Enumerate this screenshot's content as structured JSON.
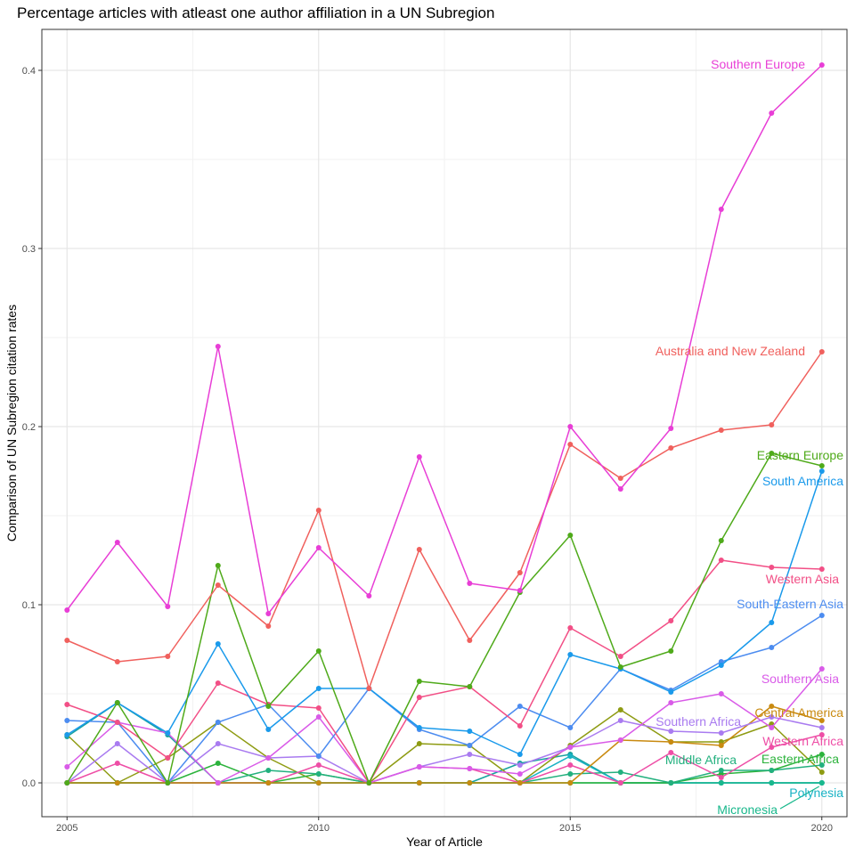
{
  "chart_data": {
    "type": "line",
    "title": "Percentage articles with atleast one author affiliation in a UN Subregion",
    "xlabel": "Year of Article",
    "ylabel": "Comparison of UN Subregion citation rates",
    "xlim": [
      2004.5,
      2020.5
    ],
    "ylim": [
      -0.019,
      0.423
    ],
    "xticks": [
      2005,
      2010,
      2015,
      2020
    ],
    "xtick_labels": [
      "2005",
      "2010",
      "2015",
      "2020"
    ],
    "yticks": [
      0.0,
      0.1,
      0.2,
      0.3,
      0.4
    ],
    "ytick_labels": [
      "0.0",
      "0.1",
      "0.2",
      "0.3",
      "0.4"
    ],
    "grid": true,
    "legend": "direct labels",
    "x": [
      2005,
      2006,
      2007,
      2008,
      2009,
      2010,
      2011,
      2012,
      2013,
      2014,
      2015,
      2016,
      2017,
      2018,
      2019,
      2020
    ],
    "series": [
      {
        "name": "Southern Europe",
        "color": "#E83ED6",
        "values": [
          0.097,
          0.135,
          0.099,
          0.245,
          0.095,
          0.132,
          0.105,
          0.183,
          0.112,
          0.108,
          0.2,
          0.165,
          0.199,
          0.322,
          0.376,
          0.403
        ]
      },
      {
        "name": "Australia and New Zealand",
        "color": "#F0605D",
        "values": [
          0.08,
          0.068,
          0.071,
          0.111,
          0.088,
          0.153,
          0.053,
          0.131,
          0.08,
          0.118,
          0.19,
          0.171,
          0.188,
          0.198,
          0.201,
          0.242
        ]
      },
      {
        "name": "Eastern Europe",
        "color": "#4FAA1A",
        "values": [
          0.0,
          0.045,
          0.0,
          0.122,
          0.043,
          0.074,
          0.0,
          0.057,
          0.054,
          0.107,
          0.139,
          0.065,
          0.074,
          0.136,
          0.185,
          0.178
        ]
      },
      {
        "name": "South America",
        "color": "#1A9AEB",
        "values": [
          0.027,
          0.045,
          0.028,
          0.078,
          0.03,
          0.053,
          0.053,
          0.031,
          0.029,
          0.016,
          0.072,
          0.064,
          0.051,
          0.066,
          0.09,
          0.175
        ]
      },
      {
        "name": "Western Asia",
        "color": "#F24F86",
        "values": [
          0.044,
          0.034,
          0.014,
          0.056,
          0.044,
          0.042,
          0.0,
          0.048,
          0.054,
          0.032,
          0.087,
          0.071,
          0.091,
          0.125,
          0.121,
          0.12
        ]
      },
      {
        "name": "South-Eastern Asia",
        "color": "#4C8CF0",
        "values": [
          0.035,
          0.034,
          0.0,
          0.034,
          0.044,
          0.015,
          0.053,
          0.03,
          0.021,
          0.043,
          0.031,
          0.064,
          0.052,
          0.068,
          0.076,
          0.094
        ]
      },
      {
        "name": "Southern Asia",
        "color": "#D95BE8",
        "values": [
          0.009,
          0.034,
          0.028,
          0.0,
          0.014,
          0.037,
          0.0,
          0.009,
          0.008,
          0.005,
          0.02,
          0.024,
          0.045,
          0.05,
          0.031,
          0.064
        ]
      },
      {
        "name": "Southern Africa",
        "color": "#A97BF0",
        "values": [
          0.0,
          0.022,
          0.0,
          0.022,
          0.014,
          0.015,
          0.0,
          0.009,
          0.016,
          0.01,
          0.02,
          0.035,
          0.029,
          0.028,
          0.037,
          0.031
        ]
      },
      {
        "name": "Central America",
        "color": "#C98A10",
        "values": [
          0.0,
          0.0,
          0.0,
          0.0,
          0.0,
          0.0,
          0.0,
          0.0,
          0.0,
          0.0,
          0.0,
          0.024,
          0.023,
          0.021,
          0.043,
          0.035
        ]
      },
      {
        "name": "Western Africa",
        "color": "#EE4EA6",
        "values": [
          0.0,
          0.011,
          0.0,
          0.0,
          0.0,
          0.01,
          0.0,
          0.009,
          0.008,
          0.0,
          0.01,
          0.0,
          0.017,
          0.003,
          0.02,
          0.027
        ]
      },
      {
        "name": "Middle Africa",
        "color": "#22B07E",
        "values": [
          0.0,
          0.0,
          0.0,
          0.0,
          0.007,
          0.005,
          0.0,
          0.0,
          0.0,
          0.0,
          0.005,
          0.006,
          0.0,
          0.007,
          0.007,
          0.01
        ]
      },
      {
        "name": "Eastern Africa",
        "color": "#2CB33C",
        "values": [
          0.0,
          0.0,
          0.0,
          0.011,
          0.0,
          0.005,
          0.0,
          0.0,
          0.0,
          0.0,
          0.0,
          0.0,
          0.0,
          0.005,
          0.007,
          0.016
        ]
      },
      {
        "name": "Micronesia",
        "color": "#19B88C",
        "values": [
          0.0,
          0.0,
          0.0,
          0.0,
          0.0,
          0.0,
          0.0,
          0.0,
          0.0,
          0.0,
          0.0,
          0.0,
          0.0,
          0.0,
          0.0,
          0.0
        ]
      },
      {
        "name": "Polynesia",
        "color": "#17B2C4",
        "values": [
          0.0,
          0.0,
          0.0,
          0.0,
          0.0,
          0.0,
          0.0,
          0.0,
          0.0,
          0.0,
          0.015,
          0.0,
          0.0,
          0.0,
          0.0,
          0.0
        ]
      },
      {
        "name": "",
        "color": "#8E9B12",
        "values": [
          0.027,
          0.0,
          0.014,
          0.034,
          0.014,
          0.0,
          0.0,
          0.022,
          0.021,
          0.0,
          0.021,
          0.041,
          0.023,
          0.023,
          0.033,
          0.006
        ]
      },
      {
        "name": "",
        "color": "#17A2A0",
        "values": [
          0.026,
          0.045,
          0.027,
          0.0,
          0.0,
          0.0,
          0.0,
          0.0,
          0.0,
          0.011,
          0.016,
          0.0,
          0.0,
          0.0,
          0.0,
          0.0
        ]
      }
    ]
  }
}
